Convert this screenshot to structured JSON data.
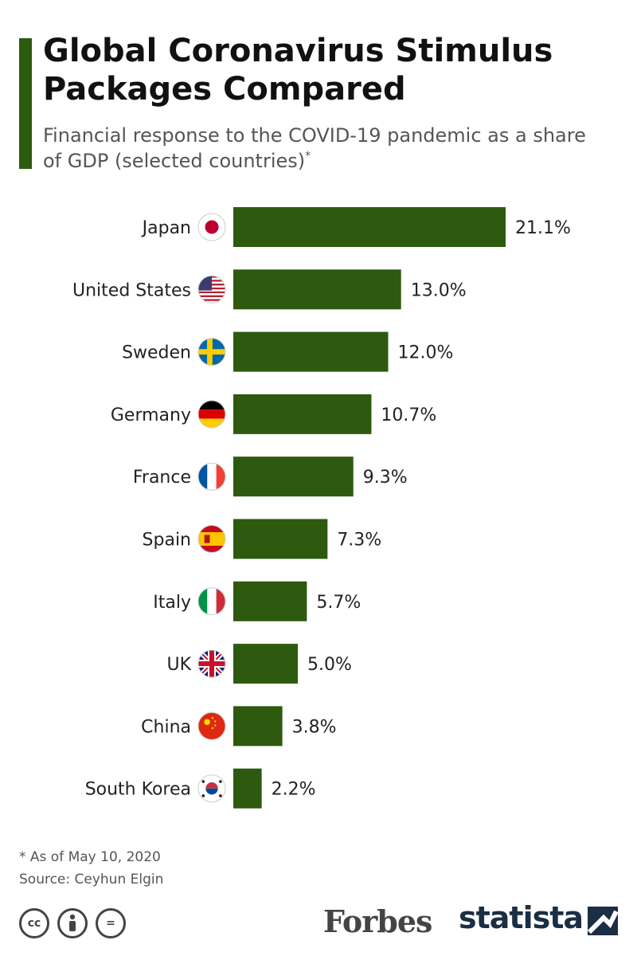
{
  "header": {
    "title": "Global Coronavirus Stimulus Packages Compared",
    "subtitle": "Financial response to the COVID-19 pandemic as a share of GDP (selected countries)",
    "subtitle_marker": "*"
  },
  "colors": {
    "bar": "#2d5a0f",
    "accent": "#2d5a0f",
    "statista": "#1a2e44"
  },
  "chart_data": {
    "type": "bar",
    "orientation": "horizontal",
    "categories": [
      "Japan",
      "United States",
      "Sweden",
      "Germany",
      "France",
      "Spain",
      "Italy",
      "UK",
      "China",
      "South Korea"
    ],
    "values": [
      21.1,
      13.0,
      12.0,
      10.7,
      9.3,
      7.3,
      5.7,
      5.0,
      3.8,
      2.2
    ],
    "value_labels": [
      "21.1%",
      "13.0%",
      "12.0%",
      "10.7%",
      "9.3%",
      "7.3%",
      "5.7%",
      "5.0%",
      "3.8%",
      "2.2%"
    ],
    "flag_icons": [
      "japan-flag-icon",
      "united-states-flag-icon",
      "sweden-flag-icon",
      "germany-flag-icon",
      "france-flag-icon",
      "spain-flag-icon",
      "italy-flag-icon",
      "uk-flag-icon",
      "china-flag-icon",
      "south-korea-flag-icon"
    ],
    "title": "Global Coronavirus Stimulus Packages Compared",
    "xlabel": "",
    "ylabel": "",
    "xlim": [
      0,
      21.1
    ],
    "grid": false,
    "legend": "none"
  },
  "footer": {
    "note": "* As of May 10, 2020",
    "source": "Source: Ceyhun Elgin",
    "license_icons": [
      "cc-icon",
      "attribution-icon",
      "no-derivatives-icon"
    ],
    "cc_text": "cc",
    "nd_text": "=",
    "forbes": "Forbes",
    "statista": "statista"
  }
}
